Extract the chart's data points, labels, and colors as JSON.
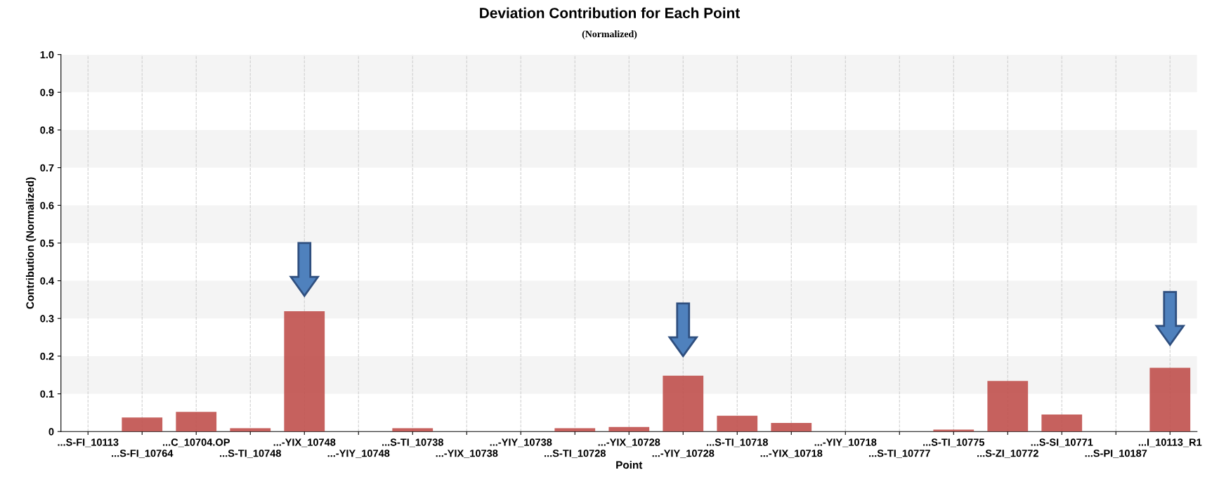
{
  "chart_data": {
    "type": "bar",
    "title": "Deviation Contribution for Each Point",
    "subtitle": "(Normalized)",
    "xlabel": "Point",
    "ylabel": "Contribution (Normalized)",
    "categories": [
      "...S-FI_10113",
      "...S-FI_10764",
      "...C_10704.OP",
      "...S-TI_10748",
      "...-YIX_10748",
      "...-YIY_10748",
      "...S-TI_10738",
      "...-YIX_10738",
      "...-YIY_10738",
      "...S-TI_10728",
      "...-YIX_10728",
      "...-YIY_10728",
      "...S-TI_10718",
      "...-YIX_10718",
      "...-YIY_10718",
      "...S-TI_10777",
      "...S-TI_10775",
      "...S-ZI_10772",
      "...S-SI_10771",
      "...S-PI_10187",
      "...I_10113_R1"
    ],
    "values": [
      0,
      0.037,
      0.052,
      0.009,
      0.319,
      0,
      0.009,
      0,
      0,
      0.009,
      0.012,
      0.148,
      0.042,
      0.023,
      0,
      0,
      0.005,
      0.134,
      0.045,
      0,
      0.169
    ],
    "color": "#c0504d",
    "ylim": [
      0,
      1.0
    ],
    "yticks": [
      0,
      0.1,
      0.2,
      0.3,
      0.4,
      0.5,
      0.6,
      0.7,
      0.8,
      0.9,
      {
        "value": 1,
        "label": "1.0"
      }
    ],
    "grid": true
  }
}
